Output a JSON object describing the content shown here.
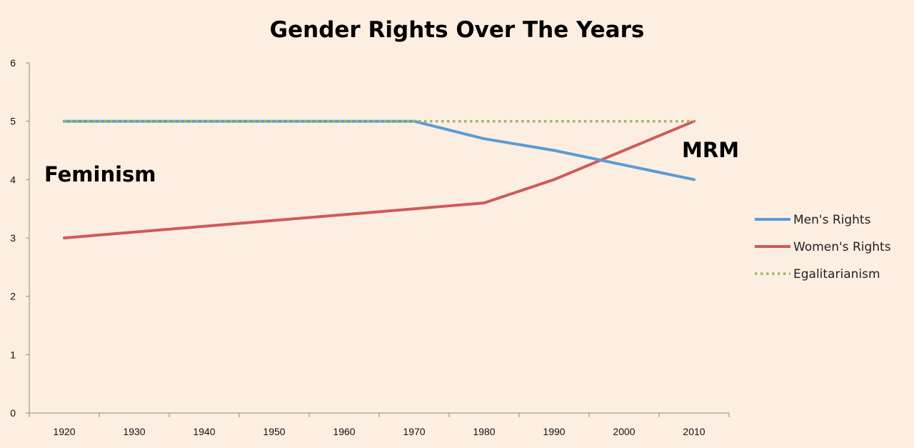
{
  "chart_data": {
    "type": "line",
    "title": "Gender Rights Over The Years",
    "xlabel": "",
    "ylabel": "",
    "categories": [
      "1920",
      "1930",
      "1940",
      "1950",
      "1960",
      "1970",
      "1980",
      "1990",
      "2000",
      "2010"
    ],
    "ylim": [
      0,
      6
    ],
    "yticks": [
      "0",
      "1",
      "2",
      "3",
      "4",
      "5",
      "6"
    ],
    "grid": false,
    "legend_position": "right",
    "series": [
      {
        "name": "Men's Rights",
        "color": "#5b9bd5",
        "style": "solid",
        "x": [
          "1920",
          "1970",
          "1980",
          "1990",
          "2010"
        ],
        "values": [
          5,
          5,
          4.7,
          4.5,
          4
        ]
      },
      {
        "name": "Women's Rights",
        "color": "#cf5b57",
        "style": "solid",
        "x": [
          "1920",
          "1970",
          "1980",
          "1990",
          "2010"
        ],
        "values": [
          3,
          3.5,
          3.6,
          4,
          5
        ]
      },
      {
        "name": "Egalitarianism",
        "color": "#9bbb59",
        "style": "dotted",
        "x": [
          "1920",
          "2010"
        ],
        "values": [
          5,
          5
        ]
      }
    ],
    "annotations": [
      {
        "text": "Feminism",
        "near": "left, below 5"
      },
      {
        "text": "MRM",
        "near": "right, above crossing"
      }
    ]
  }
}
